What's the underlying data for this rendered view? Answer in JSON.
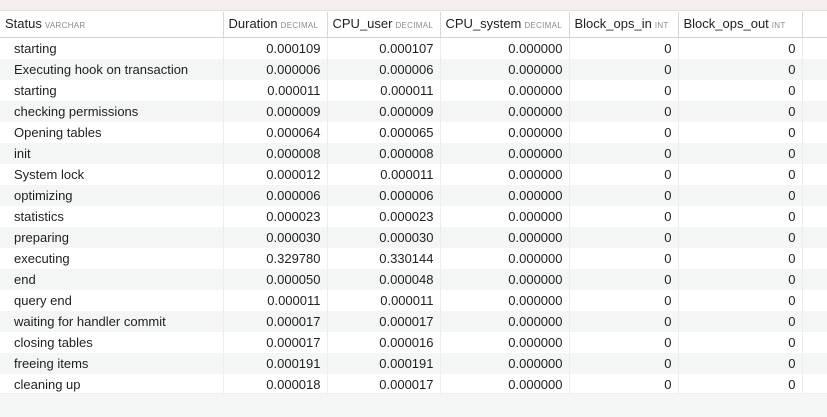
{
  "columns": [
    {
      "name": "Status",
      "type": "VARCHAR"
    },
    {
      "name": "Duration",
      "type": "DECIMAL"
    },
    {
      "name": "CPU_user",
      "type": "DECIMAL"
    },
    {
      "name": "CPU_system",
      "type": "DECIMAL"
    },
    {
      "name": "Block_ops_in",
      "type": "INT"
    },
    {
      "name": "Block_ops_out",
      "type": "INT"
    },
    {
      "name": "",
      "type": ""
    }
  ],
  "rows": [
    [
      "starting",
      "0.000109",
      "0.000107",
      "0.000000",
      "0",
      "0"
    ],
    [
      "Executing hook on transaction",
      "0.000006",
      "0.000006",
      "0.000000",
      "0",
      "0"
    ],
    [
      "starting",
      "0.000011",
      "0.000011",
      "0.000000",
      "0",
      "0"
    ],
    [
      "checking permissions",
      "0.000009",
      "0.000009",
      "0.000000",
      "0",
      "0"
    ],
    [
      "Opening tables",
      "0.000064",
      "0.000065",
      "0.000000",
      "0",
      "0"
    ],
    [
      "init",
      "0.000008",
      "0.000008",
      "0.000000",
      "0",
      "0"
    ],
    [
      "System lock",
      "0.000012",
      "0.000011",
      "0.000000",
      "0",
      "0"
    ],
    [
      "optimizing",
      "0.000006",
      "0.000006",
      "0.000000",
      "0",
      "0"
    ],
    [
      "statistics",
      "0.000023",
      "0.000023",
      "0.000000",
      "0",
      "0"
    ],
    [
      "preparing",
      "0.000030",
      "0.000030",
      "0.000000",
      "0",
      "0"
    ],
    [
      "executing",
      "0.329780",
      "0.330144",
      "0.000000",
      "0",
      "0"
    ],
    [
      "end",
      "0.000050",
      "0.000048",
      "0.000000",
      "0",
      "0"
    ],
    [
      "query end",
      "0.000011",
      "0.000011",
      "0.000000",
      "0",
      "0"
    ],
    [
      "waiting for handler commit",
      "0.000017",
      "0.000017",
      "0.000000",
      "0",
      "0"
    ],
    [
      "closing tables",
      "0.000017",
      "0.000016",
      "0.000000",
      "0",
      "0"
    ],
    [
      "freeing items",
      "0.000191",
      "0.000191",
      "0.000000",
      "0",
      "0"
    ],
    [
      "cleaning up",
      "0.000018",
      "0.000017",
      "0.000000",
      "0",
      "0"
    ]
  ]
}
